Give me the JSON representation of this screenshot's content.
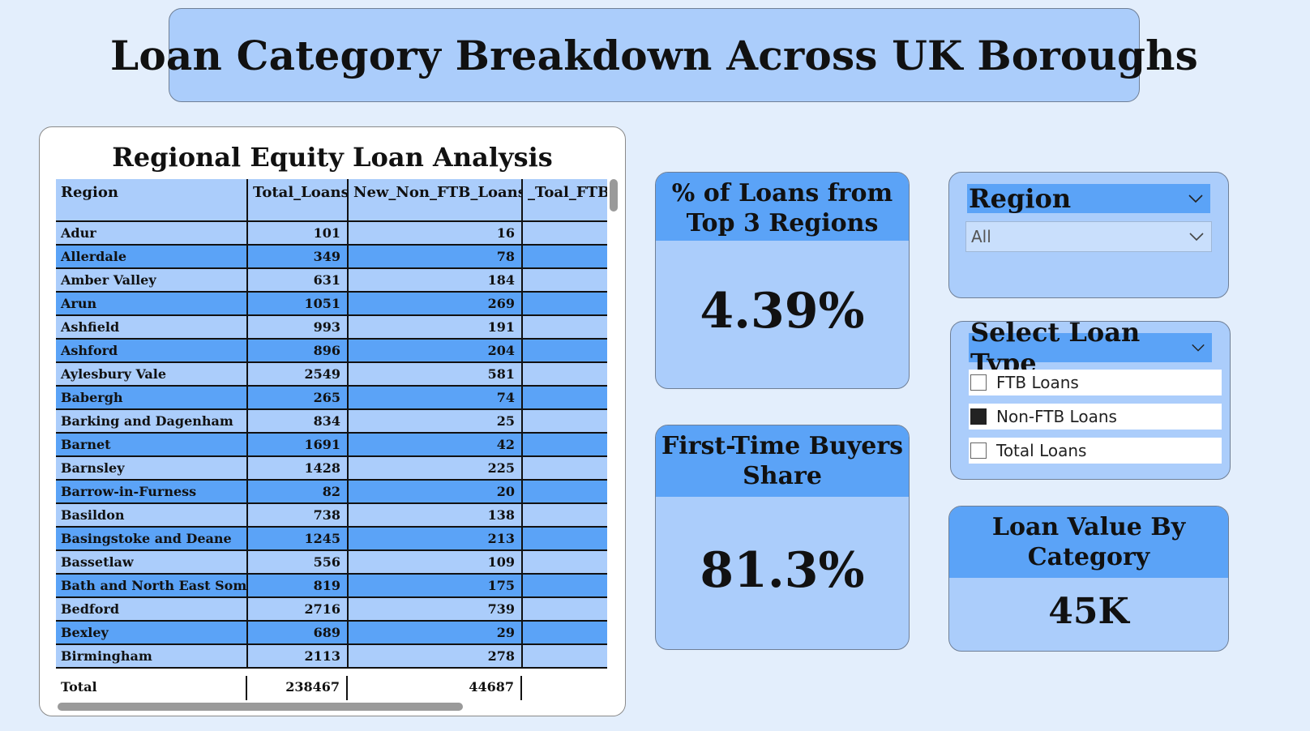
{
  "title": "Loan Category Breakdown Across UK Boroughs",
  "table": {
    "title": "Regional Equity Loan Analysis",
    "columns": [
      "Region",
      "Total_Loans",
      "New_Non_FTB_Loans",
      "_Toal_FTB"
    ],
    "rows": [
      [
        "Adur",
        "101",
        "16",
        ""
      ],
      [
        "Allerdale",
        "349",
        "78",
        ""
      ],
      [
        "Amber Valley",
        "631",
        "184",
        ""
      ],
      [
        "Arun",
        "1051",
        "269",
        ""
      ],
      [
        "Ashfield",
        "993",
        "191",
        ""
      ],
      [
        "Ashford",
        "896",
        "204",
        ""
      ],
      [
        "Aylesbury Vale",
        "2549",
        "581",
        ""
      ],
      [
        "Babergh",
        "265",
        "74",
        ""
      ],
      [
        "Barking and Dagenham",
        "834",
        "25",
        ""
      ],
      [
        "Barnet",
        "1691",
        "42",
        ""
      ],
      [
        "Barnsley",
        "1428",
        "225",
        ""
      ],
      [
        "Barrow-in-Furness",
        "82",
        "20",
        ""
      ],
      [
        "Basildon",
        "738",
        "138",
        ""
      ],
      [
        "Basingstoke and Deane",
        "1245",
        "213",
        ""
      ],
      [
        "Bassetlaw",
        "556",
        "109",
        ""
      ],
      [
        "Bath and North East Somerset",
        "819",
        "175",
        ""
      ],
      [
        "Bedford",
        "2716",
        "739",
        ""
      ],
      [
        "Bexley",
        "689",
        "29",
        ""
      ],
      [
        "Birmingham",
        "2113",
        "278",
        ""
      ]
    ],
    "total": [
      "Total",
      "238467",
      "44687",
      ""
    ]
  },
  "kpis": {
    "top3": {
      "label": "% of Loans from Top 3 Regions",
      "value": "4.39%"
    },
    "ftb": {
      "label": "First-Time Buyers Share",
      "value": "81.3%"
    },
    "loan_value": {
      "label": "Loan Value By Category",
      "value": "45K"
    }
  },
  "region_slicer": {
    "label": "Region",
    "selected": "All"
  },
  "loan_type_slicer": {
    "label": "Select Loan Type",
    "options": [
      {
        "label": "FTB Loans",
        "checked": false
      },
      {
        "label": "Non-FTB Loans",
        "checked": true
      },
      {
        "label": "Total Loans",
        "checked": false
      }
    ]
  },
  "colors": {
    "background": "#e3eefc",
    "light_blue": "#abcdfb",
    "accent_blue": "#5ba3f7"
  }
}
